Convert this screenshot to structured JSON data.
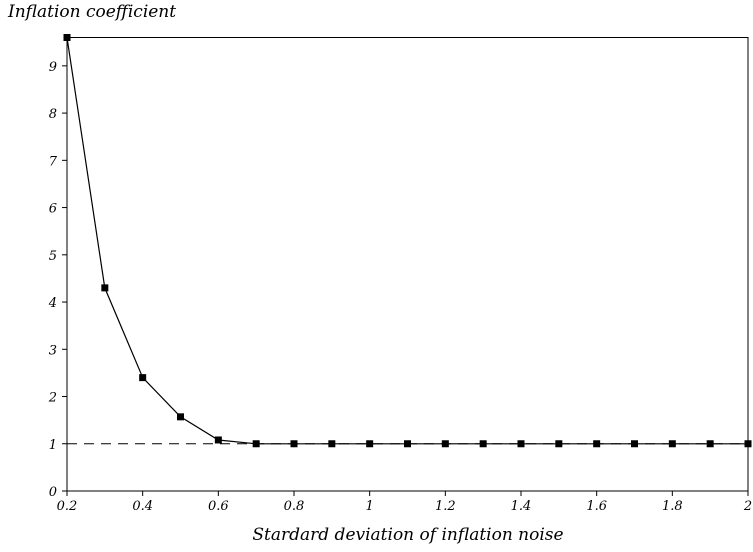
{
  "chart_data": {
    "type": "line",
    "title": "",
    "xlabel": "Stardard deviation of inflation noise",
    "ylabel": "Inflation coefficient",
    "xlim": [
      0.2,
      2.0
    ],
    "ylim": [
      0,
      9.6
    ],
    "x_ticks": [
      "0.2",
      "0.4",
      "0.6",
      "0.8",
      "1",
      "1.2",
      "1.4",
      "1.6",
      "1.8",
      "2"
    ],
    "y_ticks": [
      "0",
      "1",
      "2",
      "3",
      "4",
      "5",
      "6",
      "7",
      "8",
      "9"
    ],
    "grid": false,
    "series": [
      {
        "marker": "square",
        "color": "#000000",
        "x": [
          0.2,
          0.3,
          0.4,
          0.5,
          0.6,
          0.7,
          0.8,
          0.9,
          1.0,
          1.1,
          1.2,
          1.3,
          1.4,
          1.5,
          1.6,
          1.7,
          1.8,
          1.9,
          2.0
        ],
        "y": [
          9.6,
          4.3,
          2.4,
          1.57,
          1.08,
          1.0,
          1.0,
          1.0,
          1.0,
          1.0,
          1.0,
          1.0,
          1.0,
          1.0,
          1.0,
          1.0,
          1.0,
          1.0,
          1.0
        ]
      }
    ],
    "reference_line": {
      "y": 1,
      "style": "dashed",
      "color": "#000000"
    }
  }
}
